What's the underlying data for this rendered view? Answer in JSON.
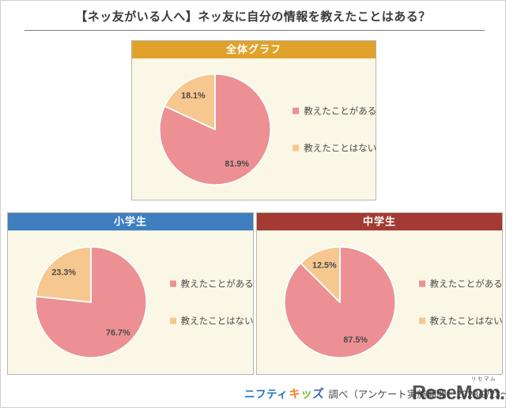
{
  "page": {
    "title": "【ネッ友がいる人へ】ネッ友に自分の情報を教えたことはある？"
  },
  "footer": {
    "source_name": "ニフティ",
    "source_logo": {
      "char1": "キ",
      "char2": "ッ",
      "char3": "ズ"
    },
    "credit_text": "調べ（アンケート実施期間：2023/9/23～10/27）",
    "watermark": "ReseMom.",
    "watermark_ruby": "リセマム"
  },
  "style": {
    "slice_stroke": "#ffffff",
    "value_label_color": "#4a4a4a",
    "panel_bg": "#faf7e6"
  },
  "chart_data": [
    {
      "type": "pie",
      "title": "全体グラフ",
      "header_color": "#e0a22b",
      "categories": [
        "教えたことがある",
        "教えたことはない"
      ],
      "values": [
        81.9,
        18.1
      ],
      "value_labels": [
        "81.9%",
        "18.1%"
      ],
      "colors": [
        "#ec9094",
        "#f6c78e"
      ],
      "start_angle": "top",
      "direction": "clockwise",
      "legend_position": "right"
    },
    {
      "type": "pie",
      "title": "小学生",
      "header_color": "#3e7ec1",
      "categories": [
        "教えたことがある",
        "教えたことはない"
      ],
      "values": [
        76.7,
        23.3
      ],
      "value_labels": [
        "76.7%",
        "23.3%"
      ],
      "colors": [
        "#ec9094",
        "#f6c78e"
      ],
      "start_angle": "top",
      "direction": "clockwise",
      "legend_position": "right"
    },
    {
      "type": "pie",
      "title": "中学生",
      "header_color": "#a33a34",
      "categories": [
        "教えたことがある",
        "教えたことはない"
      ],
      "values": [
        87.5,
        12.5
      ],
      "value_labels": [
        "87.5%",
        "12.5%"
      ],
      "colors": [
        "#ec9094",
        "#f6c78e"
      ],
      "start_angle": "top",
      "direction": "clockwise",
      "legend_position": "right"
    }
  ]
}
